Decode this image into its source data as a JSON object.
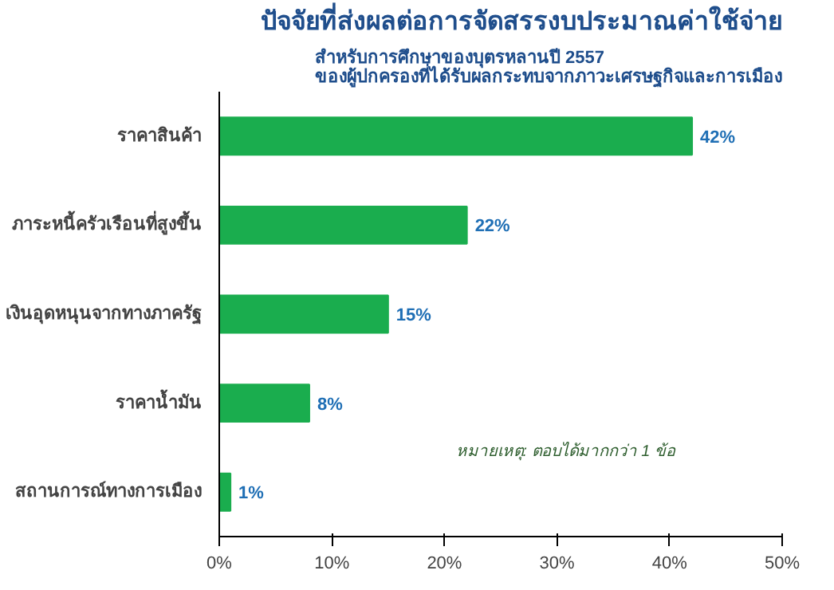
{
  "chart_data": {
    "type": "bar",
    "orientation": "horizontal",
    "title": "ปัจจัยที่ส่งผลต่อการจัดสรรงบประมาณค่าใช้จ่าย",
    "subtitle": "สำหรับการศึกษาของบุตรหลานปี 2557\nของผู้ปกครองที่ได้รับผลกระทบจากภาวะเศรษฐกิจและการเมือง",
    "categories": [
      "ราคาสินค้า",
      "ภาระหนี้ครัวเรือนที่สูงขึ้น",
      "เงินอุดหนุนจากทางภาครัฐ",
      "ราคาน้ำมัน",
      "สถานการณ์ทางการเมือง"
    ],
    "values": [
      42,
      22,
      15,
      8,
      1
    ],
    "color": "#1aad4e",
    "value_labels": [
      "42%",
      "22%",
      "15%",
      "8%",
      "1%"
    ],
    "xlim": [
      0,
      50
    ],
    "xticks": [
      {
        "value": 0,
        "label": "0%"
      },
      {
        "value": 10,
        "label": "10%"
      },
      {
        "value": 20,
        "label": "20%"
      },
      {
        "value": 30,
        "label": "30%"
      },
      {
        "value": 40,
        "label": "40%"
      },
      {
        "value": 50,
        "label": "50%"
      }
    ],
    "grid": false,
    "annotations": [
      "หมายเหตุ: ตอบได้มากกว่า 1 ข้อ"
    ]
  }
}
